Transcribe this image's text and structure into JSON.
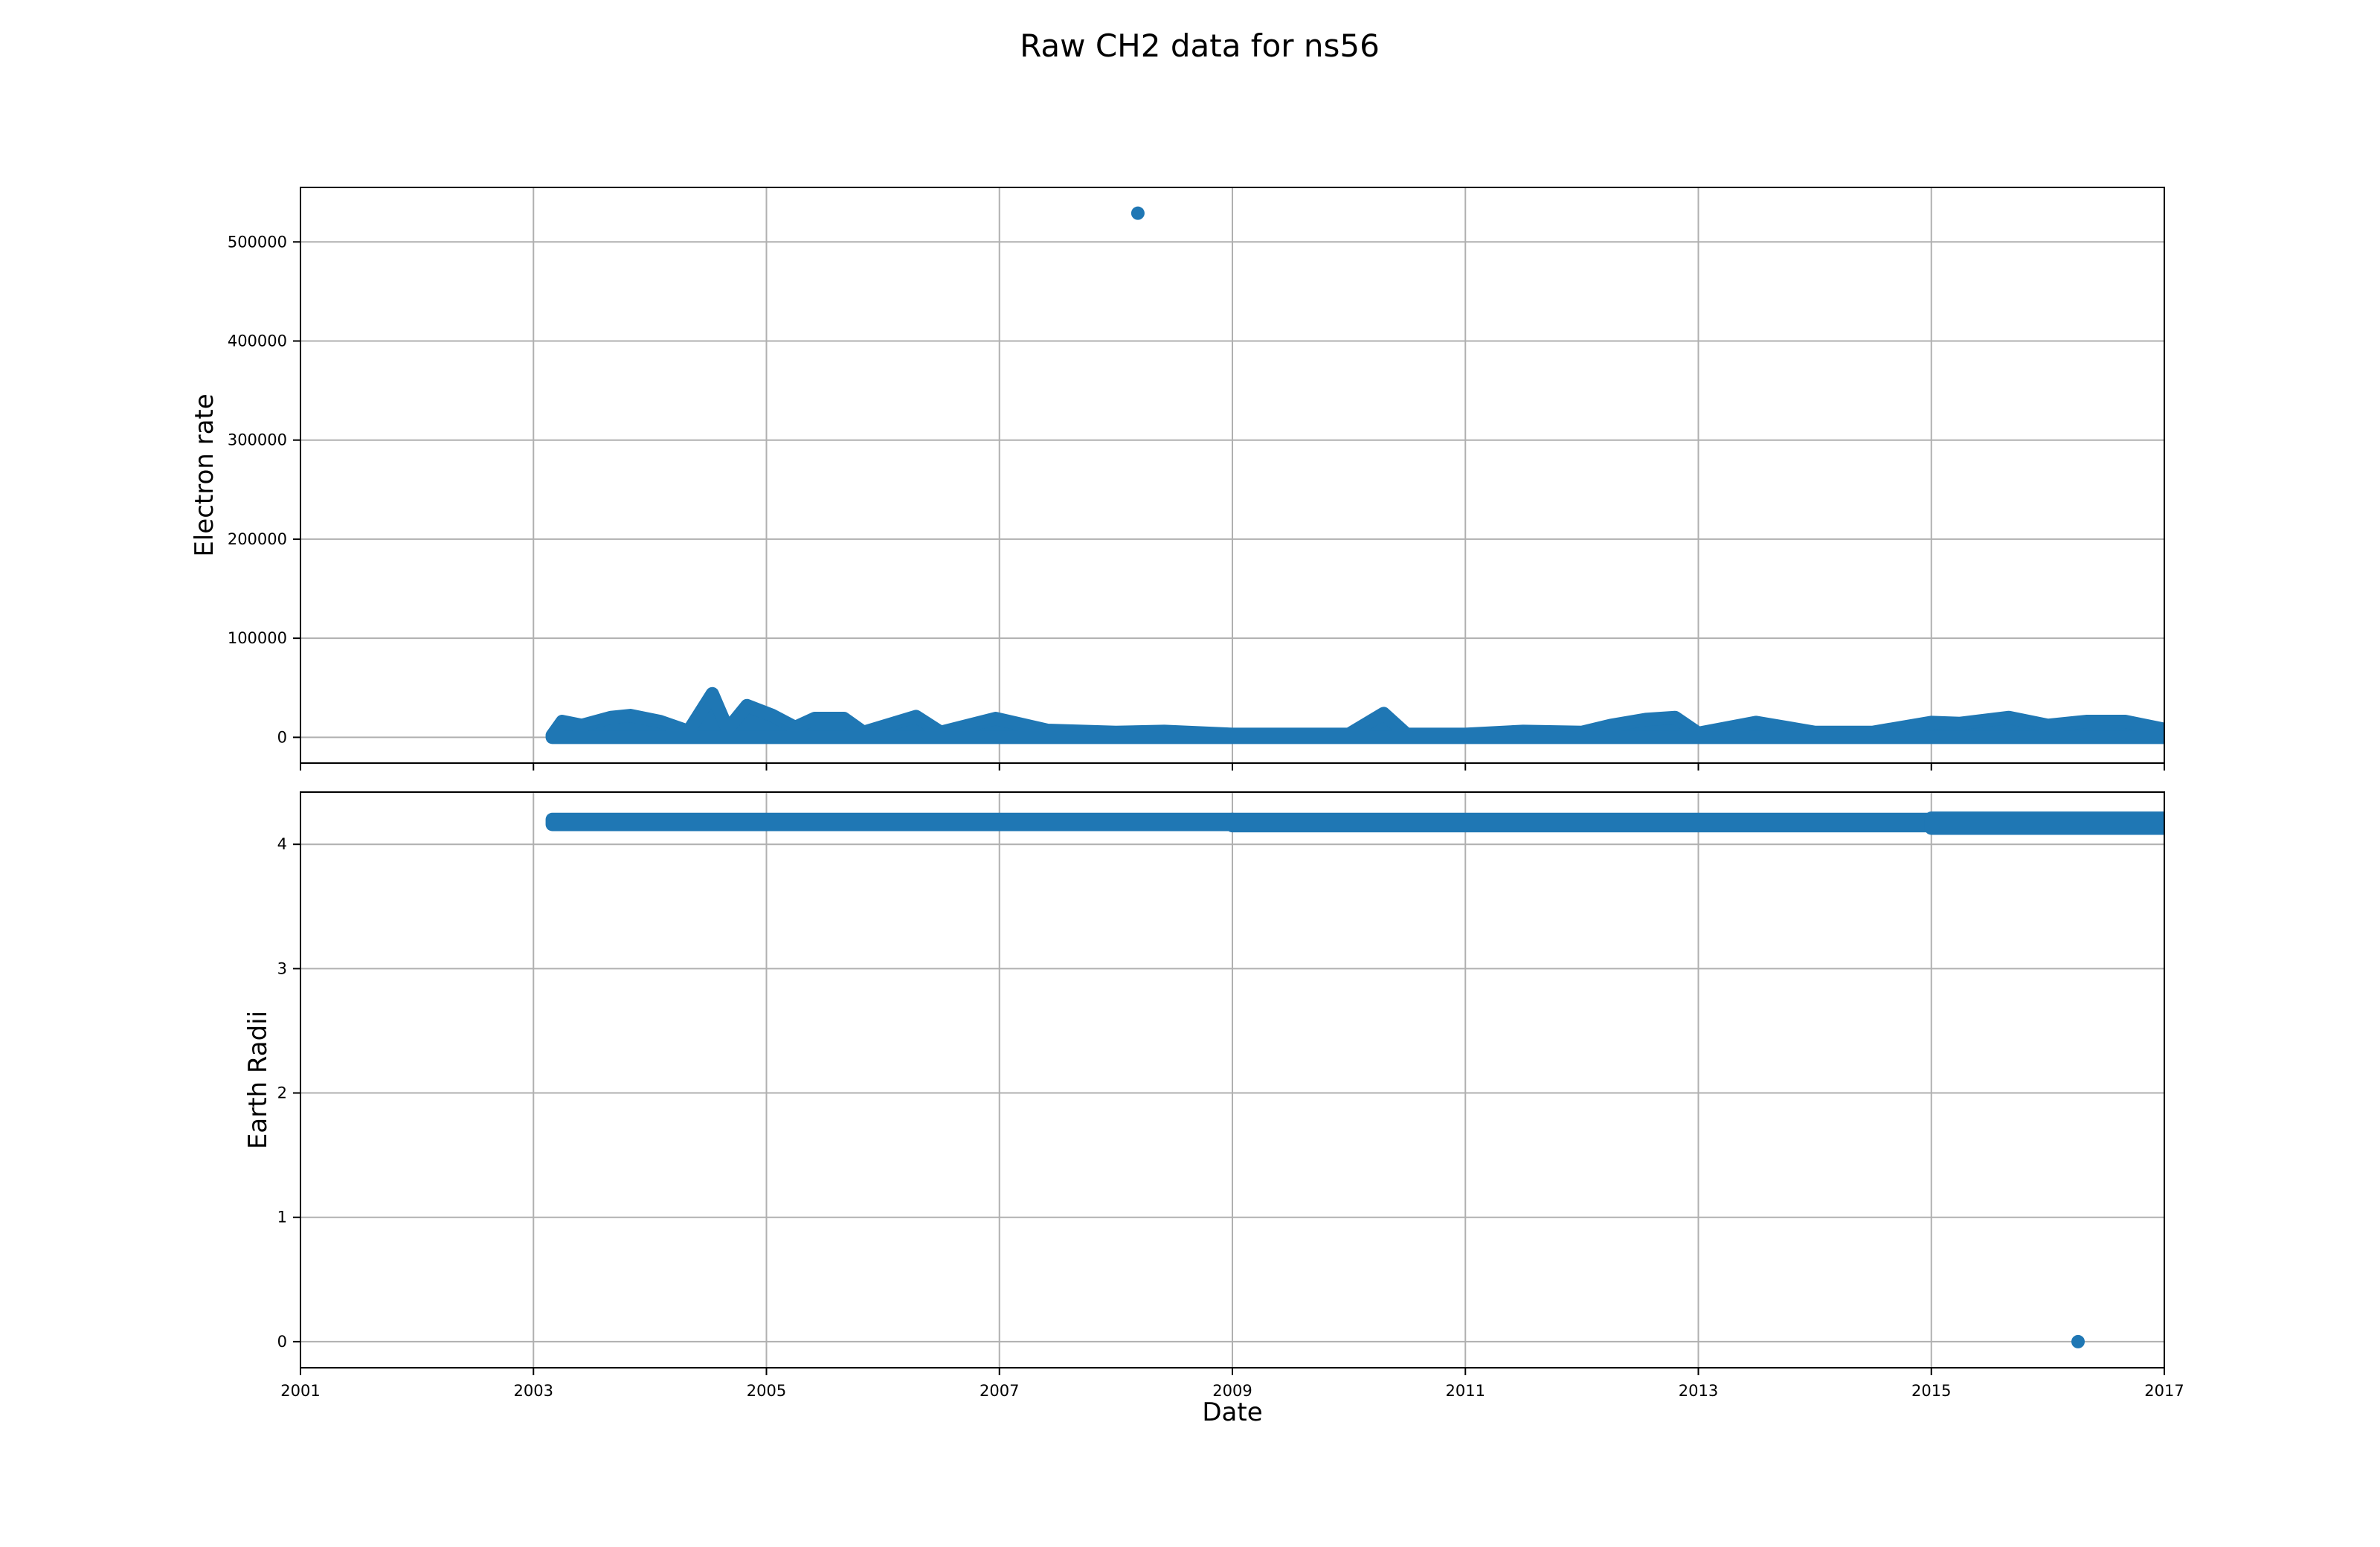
{
  "title": "Raw CH2 data for ns56",
  "colors": {
    "series": "#1f77b4",
    "grid": "#b0b0b0",
    "axes": "#000000"
  },
  "chart_data": [
    {
      "type": "scatter",
      "panel": "top",
      "xlabel": "",
      "ylabel": "Electron rate",
      "xlim": [
        "2001-01-01",
        "2017-01-01"
      ],
      "ylim": [
        -26000,
        555000
      ],
      "x_ticks": [
        "2001",
        "2003",
        "2005",
        "2007",
        "2009",
        "2011",
        "2013",
        "2015",
        "2017"
      ],
      "y_ticks": [
        "0",
        "100000",
        "200000",
        "300000",
        "400000",
        "500000"
      ],
      "grid": true,
      "series_color": "#1f77b4",
      "data_start": "2003-03-01",
      "data_end": "2017-01-01",
      "band_low": 0,
      "band_envelope": [
        [
          "2003-03-01",
          2000
        ],
        [
          "2003-04-01",
          16000
        ],
        [
          "2003-06-01",
          12000
        ],
        [
          "2003-09-01",
          20000
        ],
        [
          "2003-11-01",
          22000
        ],
        [
          "2004-02-01",
          16000
        ],
        [
          "2004-05-01",
          6000
        ],
        [
          "2004-07-15",
          44000
        ],
        [
          "2004-09-01",
          8000
        ],
        [
          "2004-11-01",
          32000
        ],
        [
          "2005-01-20",
          22000
        ],
        [
          "2005-04-01",
          10000
        ],
        [
          "2005-06-01",
          19000
        ],
        [
          "2005-09-01",
          19000
        ],
        [
          "2005-11-01",
          5000
        ],
        [
          "2006-04-15",
          21000
        ],
        [
          "2006-07-01",
          5000
        ],
        [
          "2006-12-20",
          19000
        ],
        [
          "2007-06-01",
          7000
        ],
        [
          "2008-01-01",
          5000
        ],
        [
          "2008-06-01",
          6000
        ],
        [
          "2009-01-01",
          3000
        ],
        [
          "2010-01-01",
          3000
        ],
        [
          "2010-04-20",
          24000
        ],
        [
          "2010-07-01",
          3000
        ],
        [
          "2011-01-01",
          3000
        ],
        [
          "2011-07-01",
          6000
        ],
        [
          "2012-01-01",
          5000
        ],
        [
          "2012-04-01",
          12000
        ],
        [
          "2012-07-20",
          18000
        ],
        [
          "2012-10-20",
          20000
        ],
        [
          "2013-01-01",
          4000
        ],
        [
          "2013-07-01",
          15000
        ],
        [
          "2014-01-01",
          5000
        ],
        [
          "2014-07-01",
          5000
        ],
        [
          "2015-01-01",
          15000
        ],
        [
          "2015-04-01",
          14000
        ],
        [
          "2015-09-01",
          20000
        ],
        [
          "2016-01-01",
          12000
        ],
        [
          "2016-05-01",
          16000
        ],
        [
          "2016-09-01",
          16000
        ],
        [
          "2017-01-01",
          8000
        ]
      ],
      "points": [
        {
          "x": "2008-03-10",
          "y": 529000
        }
      ]
    },
    {
      "type": "scatter",
      "panel": "bottom",
      "xlabel": "Date",
      "ylabel": "Earth Radii",
      "xlim": [
        "2001-01-01",
        "2017-01-01"
      ],
      "ylim": [
        -0.21,
        4.42
      ],
      "x_ticks": [
        "2001",
        "2003",
        "2005",
        "2007",
        "2009",
        "2011",
        "2013",
        "2015",
        "2017"
      ],
      "y_ticks": [
        "0",
        "1",
        "2",
        "3",
        "4"
      ],
      "grid": true,
      "series_color": "#1f77b4",
      "data_start": "2003-03-01",
      "data_end": "2017-01-01",
      "band_segments": [
        {
          "from": "2003-03-01",
          "to": "2009-01-01",
          "low": 4.16,
          "high": 4.2
        },
        {
          "from": "2009-01-01",
          "to": "2015-01-01",
          "low": 4.15,
          "high": 4.2
        },
        {
          "from": "2015-01-01",
          "to": "2017-01-01",
          "low": 4.13,
          "high": 4.21
        }
      ],
      "points": [
        {
          "x": "2016-04-05",
          "y": 0
        }
      ]
    }
  ]
}
